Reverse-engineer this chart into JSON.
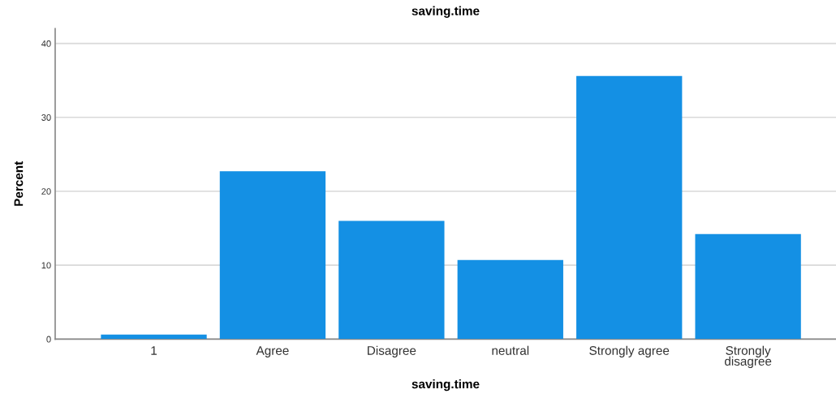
{
  "chart_data": {
    "type": "bar",
    "title": "saving.time",
    "xlabel": "saving.time",
    "ylabel": "Percent",
    "categories": [
      "1",
      "Agree",
      "Disagree",
      "neutral",
      "Strongly agree",
      "Strongly\ndisagree"
    ],
    "values": [
      0.6,
      22.7,
      16.0,
      10.7,
      35.6,
      14.2
    ],
    "color": "#1490e4",
    "ylim": [
      0,
      42
    ],
    "yticks": [
      0,
      10,
      20,
      30,
      40
    ],
    "grid": "y"
  }
}
